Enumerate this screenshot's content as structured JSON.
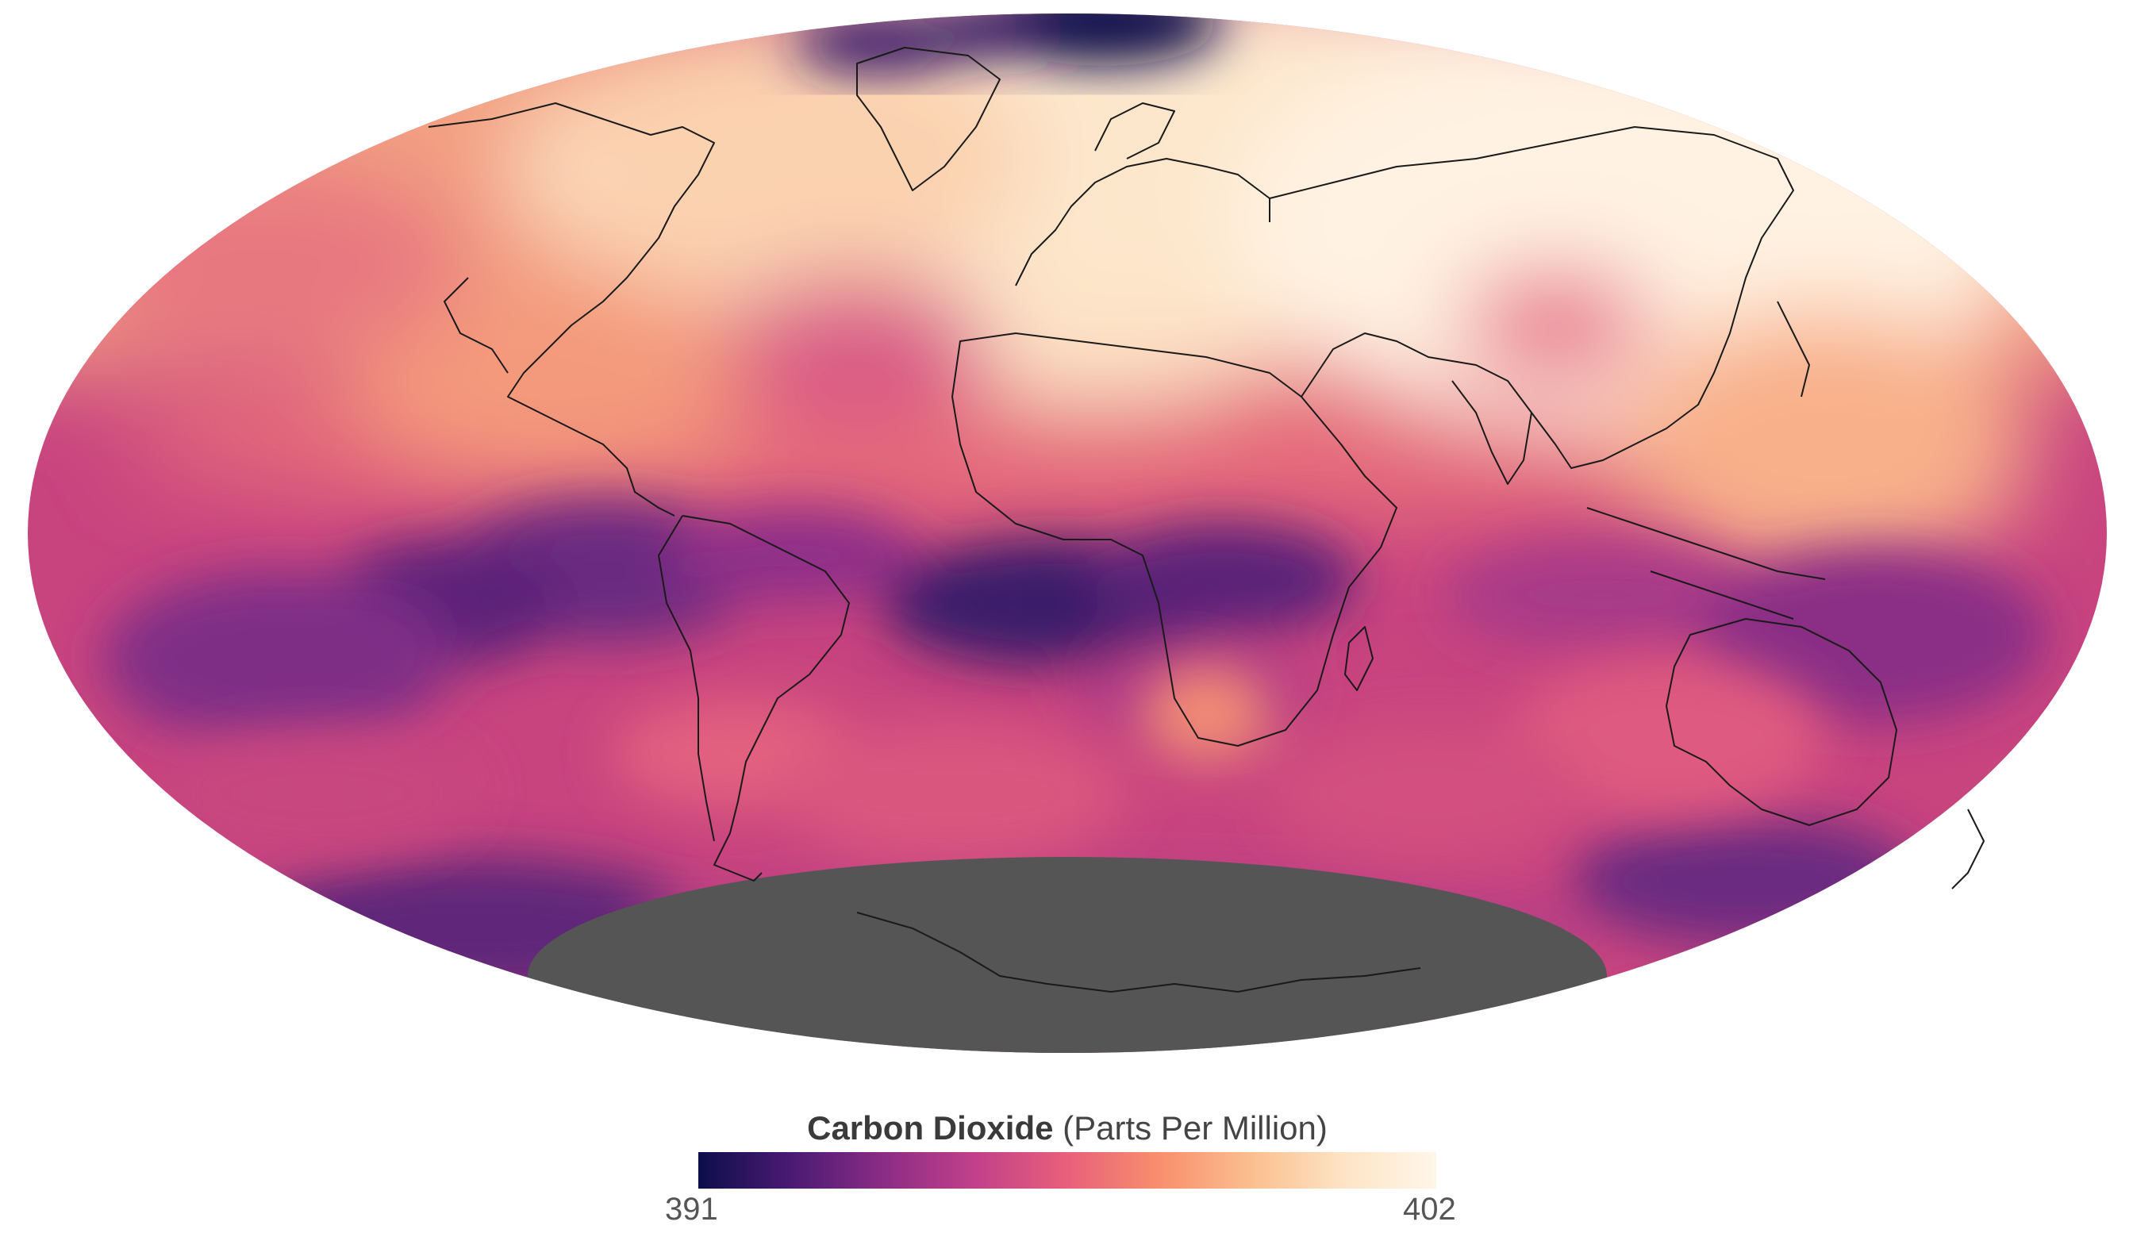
{
  "map": {
    "projection": "Mollweide",
    "variable": "atmospheric carbon dioxide concentration",
    "no_data_region": "Antarctica",
    "no_data_color": "#555555",
    "coastline_color": "#1a1a1a",
    "high_regions": [
      "Arctic Canada",
      "Greenland",
      "Europe",
      "Russia",
      "North Africa",
      "Middle East",
      "East Asia"
    ],
    "low_regions": [
      "Arctic Ocean north of Greenland",
      "Equatorial Atlantic",
      "Tropical South America",
      "Tropical Pacific",
      "Southern Ocean"
    ]
  },
  "legend": {
    "title_bold": "Carbon Dioxide",
    "title_unit": "(Parts Per Million)",
    "min_label": "391",
    "max_label": "402",
    "min": 391,
    "max": 402,
    "colormap": [
      "#0d0e4b",
      "#4a1a73",
      "#8a2c85",
      "#c2408a",
      "#e8607a",
      "#f88f6d",
      "#fbbf8f",
      "#fde4c5",
      "#fff6e9"
    ]
  }
}
